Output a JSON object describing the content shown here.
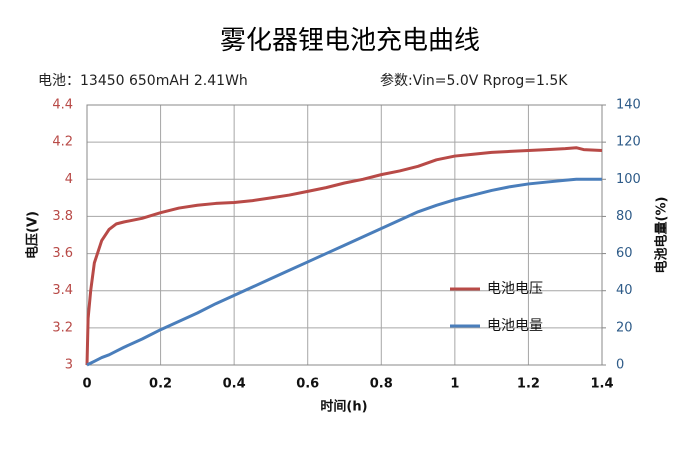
{
  "chart_data": {
    "type": "line",
    "title": "雾化器锂电池充电曲线",
    "subtitle": "电池：13450 650mAH 2.41Wh",
    "annotation": "参数:Vin=5.0V  Rprog=1.5K",
    "xlabel": "时间(h)",
    "ylabel": "电压(V)",
    "y2label": "电池电量(%)",
    "x": [
      0,
      0.003,
      0.01,
      0.02,
      0.04,
      0.06,
      0.08,
      0.1,
      0.15,
      0.2,
      0.25,
      0.3,
      0.35,
      0.4,
      0.45,
      0.5,
      0.55,
      0.6,
      0.65,
      0.7,
      0.75,
      0.8,
      0.85,
      0.9,
      0.95,
      1.0,
      1.05,
      1.1,
      1.15,
      1.2,
      1.25,
      1.3,
      1.33,
      1.35,
      1.4
    ],
    "series": [
      {
        "name": "电池电压",
        "color": "#b84a47",
        "values": [
          3.0,
          3.25,
          3.4,
          3.55,
          3.67,
          3.73,
          3.76,
          3.77,
          3.79,
          3.82,
          3.845,
          3.86,
          3.87,
          3.875,
          3.885,
          3.9,
          3.915,
          3.935,
          3.955,
          3.98,
          4.0,
          4.025,
          4.045,
          4.07,
          4.105,
          4.125,
          4.135,
          4.145,
          4.15,
          4.155,
          4.16,
          4.165,
          4.17,
          4.16,
          4.155
        ]
      },
      {
        "name": "电池电量",
        "color": "#4a7ebb",
        "axis": "y2",
        "values": [
          0,
          0.3,
          1,
          2,
          4,
          5.5,
          7.5,
          9.5,
          14,
          19,
          23.5,
          28,
          33,
          37.5,
          42,
          46.5,
          51,
          55.5,
          60,
          64.5,
          69,
          73.5,
          78,
          82.5,
          86,
          89,
          91.5,
          94,
          96,
          97.5,
          98.5,
          99.5,
          100,
          100,
          100
        ]
      }
    ],
    "xlim": [
      0,
      1.4
    ],
    "xticks": [
      0,
      0.2,
      0.4,
      0.6,
      0.8,
      1,
      1.2,
      1.4
    ],
    "ylim": [
      3,
      4.4
    ],
    "yticks": [
      3,
      3.2,
      3.4,
      3.6,
      3.8,
      4,
      4.2,
      4.4
    ],
    "y2lim": [
      0,
      140
    ],
    "y2ticks": [
      0,
      20,
      40,
      60,
      80,
      100,
      120,
      140
    ],
    "grid": true,
    "legend": "lower right"
  }
}
